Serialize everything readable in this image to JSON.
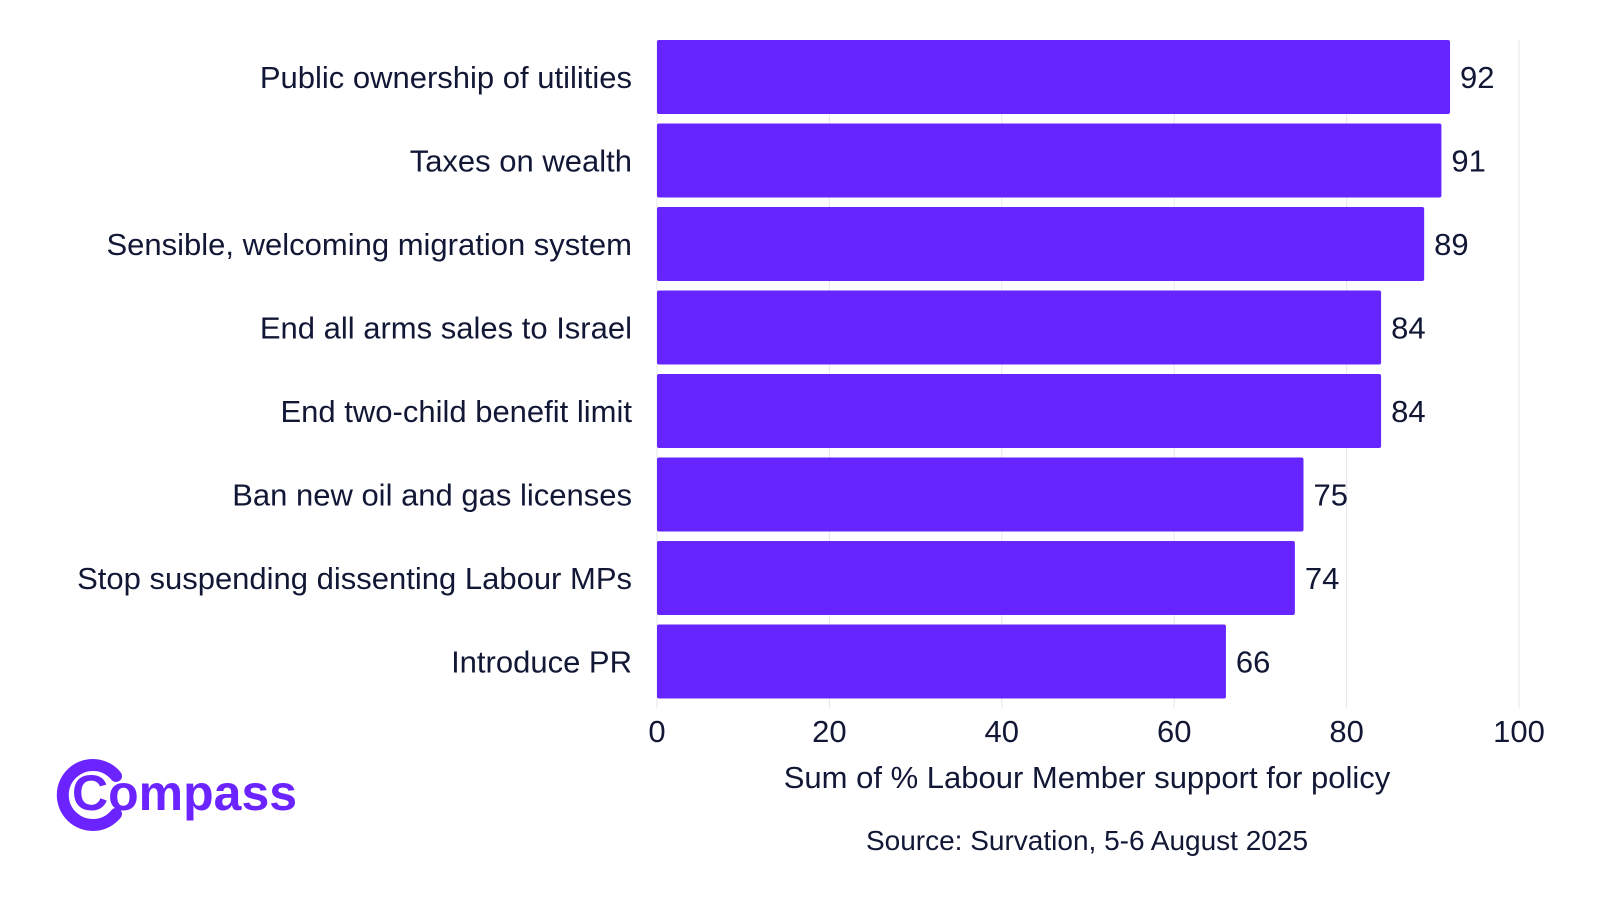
{
  "brand": {
    "logo_text": "Compass",
    "logo_color": "#6B24FF"
  },
  "colors": {
    "bar": "#6624FF",
    "text": "#111735",
    "grid": "#e6e6e6"
  },
  "chart_data": {
    "type": "bar",
    "orientation": "horizontal",
    "categories": [
      "Public ownership of utilities",
      "Taxes on wealth",
      "Sensible, welcoming migration system",
      "End all arms sales to Israel",
      "End two-child benefit limit",
      "Ban new oil and gas licenses",
      "Stop suspending dissenting Labour MPs",
      "Introduce PR"
    ],
    "values": [
      92,
      91,
      89,
      84,
      84,
      75,
      74,
      66
    ],
    "value_labels": [
      "92",
      "91",
      "89",
      "84",
      "84",
      "75",
      "74",
      "66"
    ],
    "xlabel": "Sum of % Labour Member support for policy",
    "xlim": [
      0,
      100
    ],
    "xticks": [
      0,
      20,
      40,
      60,
      80,
      100
    ],
    "xtick_labels": [
      "0",
      "20",
      "40",
      "60",
      "80",
      "100"
    ],
    "grid": "vertical",
    "legend": "none",
    "source": "Source: Survation, 5-6 August 2025"
  }
}
